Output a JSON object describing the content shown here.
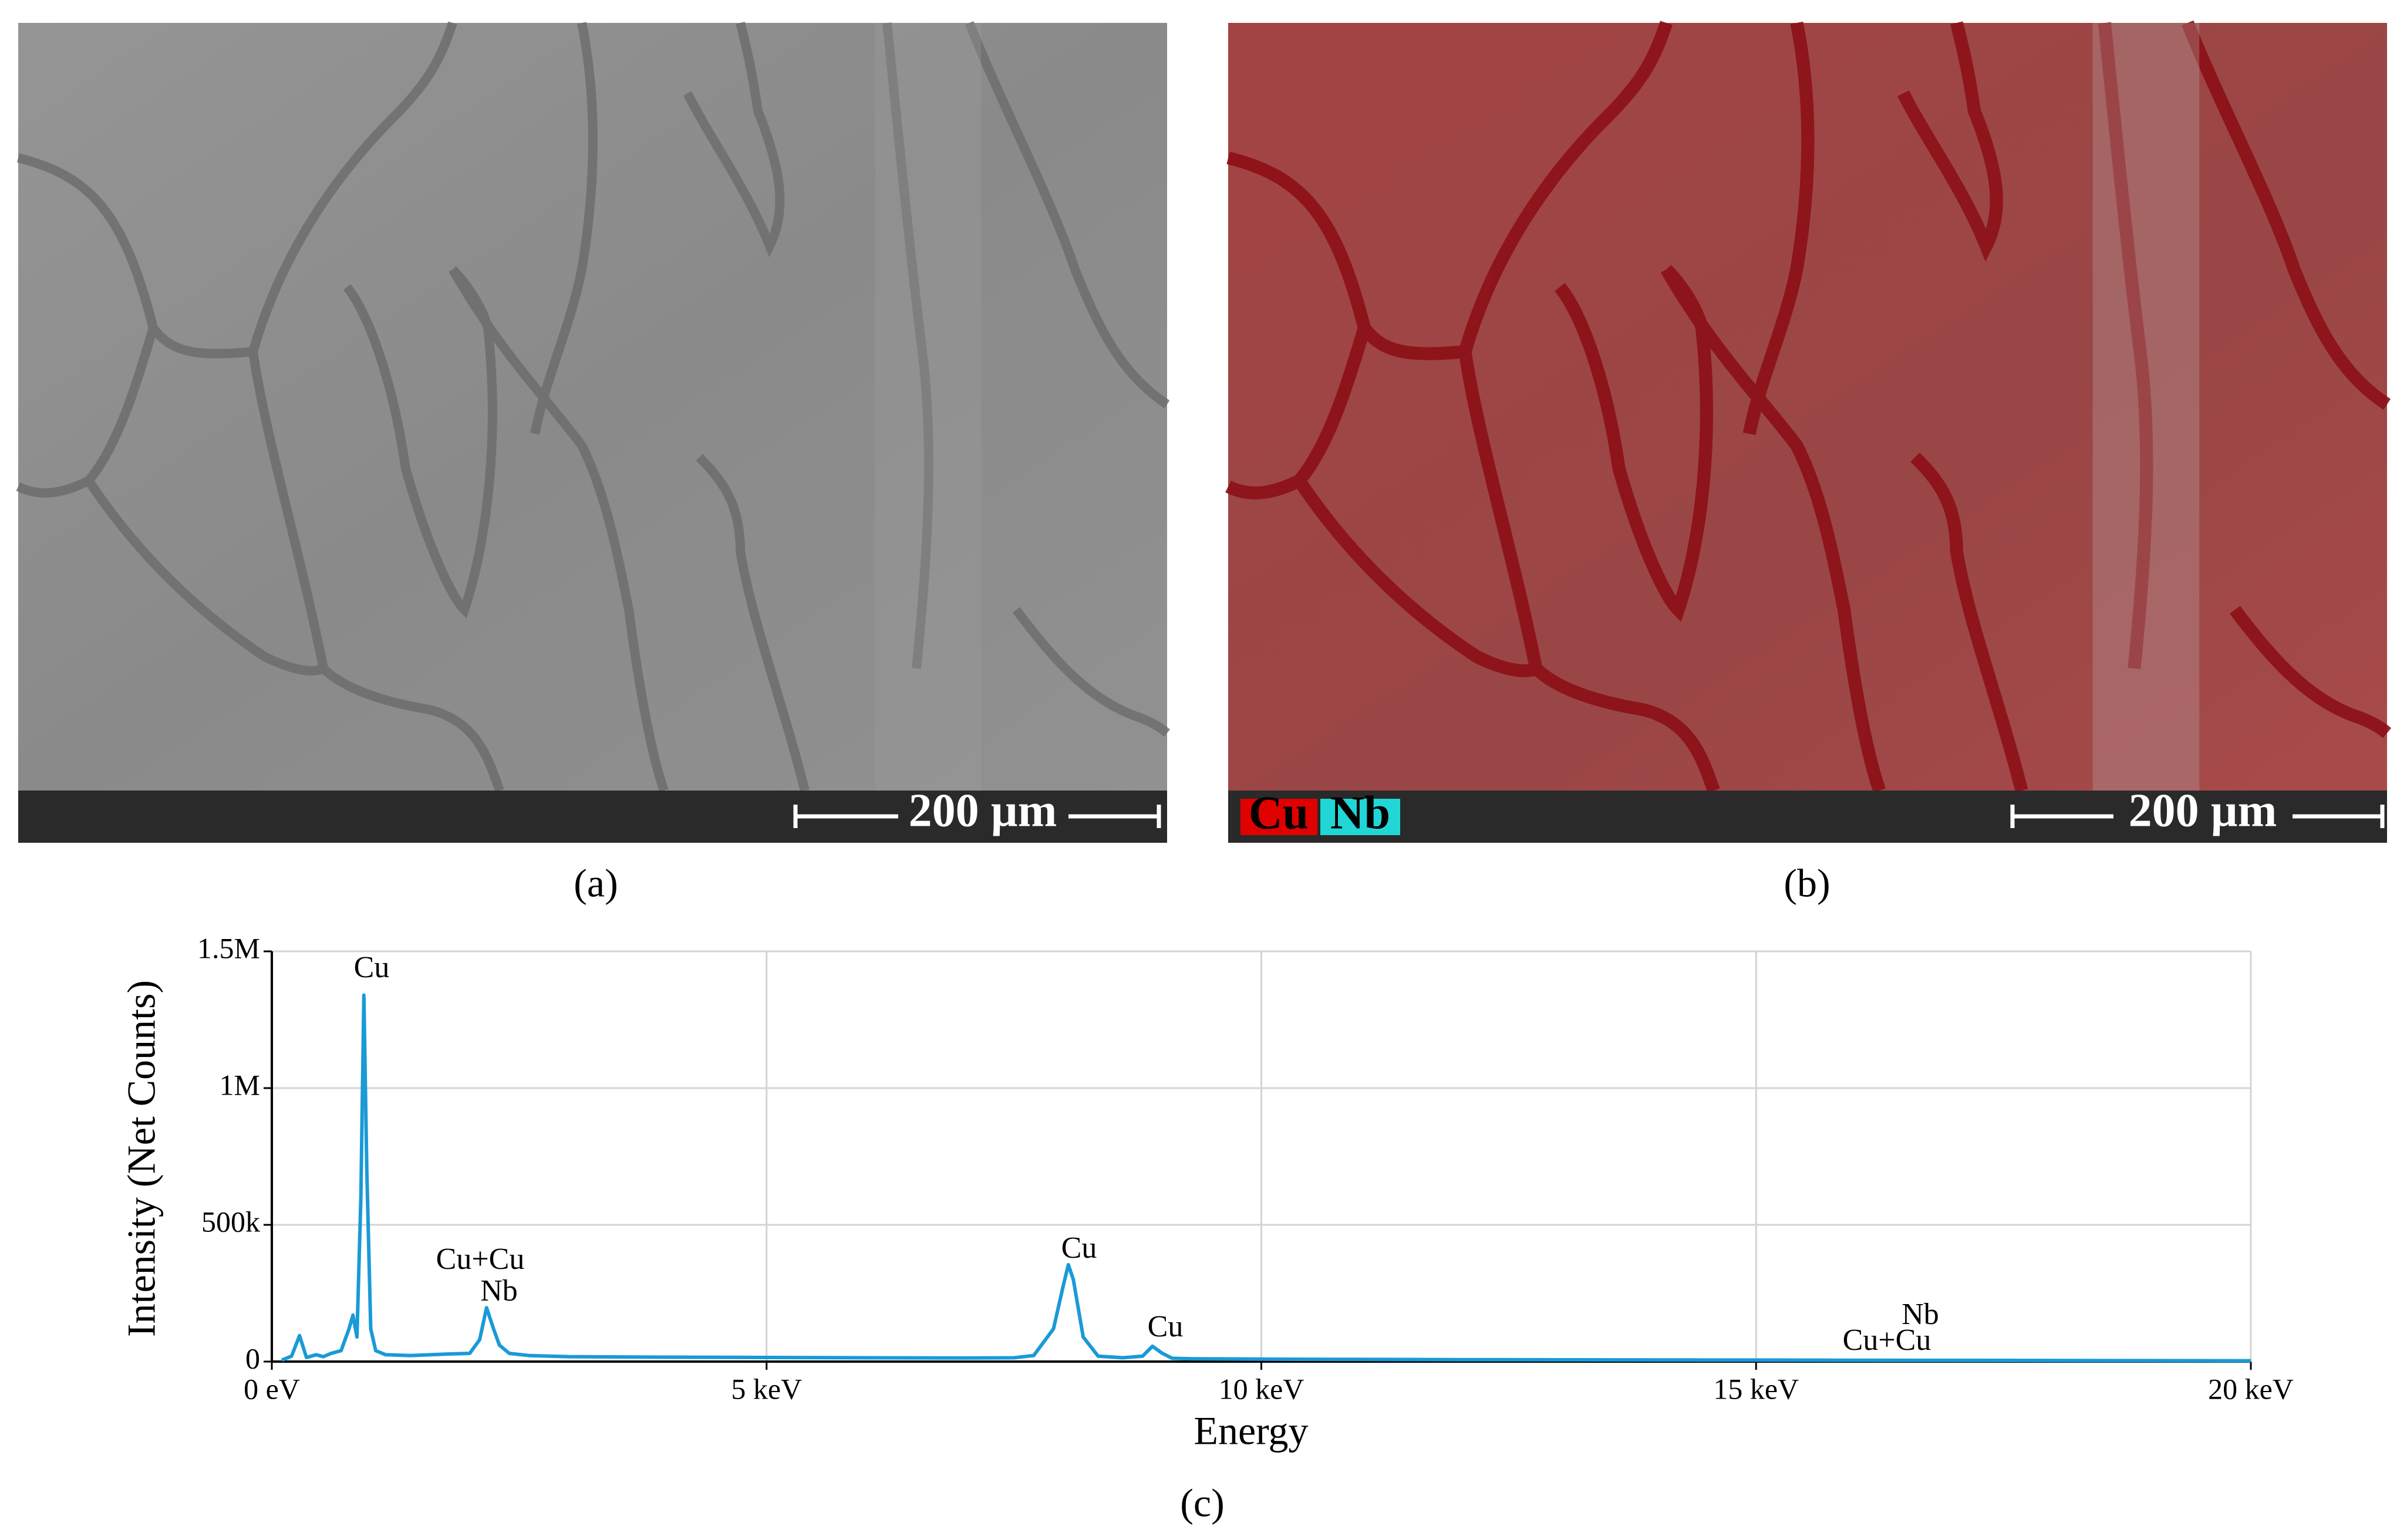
{
  "panels": {
    "a": {
      "scale_bar": "200 µm",
      "label": "(a)"
    },
    "b": {
      "scale_bar": "200 µm",
      "legend": [
        "Cu",
        "Nb"
      ],
      "label": "(b)"
    },
    "c": {
      "label": "(c)"
    }
  },
  "chart_data": {
    "type": "line",
    "x_label": "Energy",
    "y_label": "Intensity (Net Counts)",
    "x": [
      0.1,
      0.2,
      0.28,
      0.35,
      0.45,
      0.52,
      0.6,
      0.7,
      0.78,
      0.82,
      0.86,
      0.9,
      0.93,
      0.96,
      1.0,
      1.05,
      1.15,
      1.4,
      1.8,
      2.0,
      2.1,
      2.17,
      2.24,
      2.3,
      2.4,
      2.6,
      3.0,
      4.0,
      5.0,
      6.0,
      7.0,
      7.5,
      7.7,
      7.9,
      8.0,
      8.05,
      8.1,
      8.2,
      8.35,
      8.6,
      8.8,
      8.9,
      9.0,
      9.1,
      9.3,
      10.0,
      11.0,
      12.0,
      14.0,
      16.0,
      18.0,
      20.0
    ],
    "series": [
      {
        "color": "#1a9ad6",
        "values": [
          5000,
          20000,
          95000,
          15000,
          25000,
          18000,
          30000,
          40000,
          120000,
          170000,
          90000,
          600000,
          1340000,
          700000,
          120000,
          40000,
          25000,
          22000,
          28000,
          30000,
          80000,
          197000,
          120000,
          60000,
          30000,
          22000,
          18000,
          16000,
          15000,
          14000,
          13000,
          14000,
          22000,
          120000,
          280000,
          354000,
          300000,
          90000,
          20000,
          14000,
          20000,
          56000,
          30000,
          12000,
          10000,
          9000,
          8000,
          7000,
          6000,
          5000,
          4000,
          3000
        ]
      }
    ],
    "xlim": [
      0,
      20
    ],
    "xticks": [
      {
        "value": 0,
        "label": "0 eV"
      },
      {
        "value": 5,
        "label": "5 keV"
      },
      {
        "value": 10,
        "label": "10 keV"
      },
      {
        "value": 15,
        "label": "15 keV"
      },
      {
        "value": 20,
        "label": "20 keV"
      }
    ],
    "ylim": [
      0,
      1500000
    ],
    "yticks": [
      0,
      {
        "value": 500000,
        "label": "500k"
      },
      {
        "value": 1000000,
        "label": "1M"
      },
      {
        "value": 1500000,
        "label": "1.5M"
      }
    ],
    "grid": true,
    "annotations": [
      "Cu",
      "Cu+Cu",
      "Nb",
      "Cu",
      "Cu",
      "Nb",
      "Cu+Cu"
    ]
  }
}
